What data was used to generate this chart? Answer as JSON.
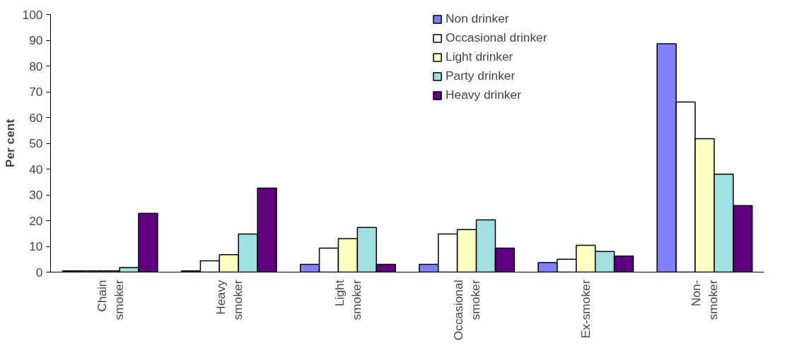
{
  "chart_data": {
    "type": "bar",
    "ylabel": "Per cent",
    "categories": [
      "Chain\nsmoker",
      "Heavy\nsmoker",
      "Light\nsmoker",
      "Occasional\nsmoker",
      "Ex-smoker",
      "Non-\nsmoker"
    ],
    "series": [
      {
        "name": "Non drinker",
        "color": "#8080ff",
        "values": [
          0.5,
          0.5,
          3,
          3,
          3.7,
          88.6
        ]
      },
      {
        "name": "Occasional drinker",
        "color": "#ffffff",
        "values": [
          0.5,
          4.4,
          9.3,
          14.8,
          5,
          66
        ]
      },
      {
        "name": "Light drinker",
        "color": "#ffffc0",
        "values": [
          0.5,
          6.8,
          13,
          16.5,
          10.4,
          51.8
        ]
      },
      {
        "name": "Party drinker",
        "color": "#a0e0e0",
        "values": [
          1.8,
          14.8,
          17.3,
          20.3,
          8,
          38
        ]
      },
      {
        "name": "Heavy drinker",
        "color": "#600080",
        "values": [
          22.8,
          32.6,
          3,
          9.3,
          6.2,
          25.8
        ]
      }
    ],
    "ylim": [
      0,
      100
    ],
    "yticks": [
      0,
      10,
      20,
      30,
      40,
      50,
      60,
      70,
      80,
      90,
      100
    ],
    "grid": false,
    "legend": "top"
  }
}
